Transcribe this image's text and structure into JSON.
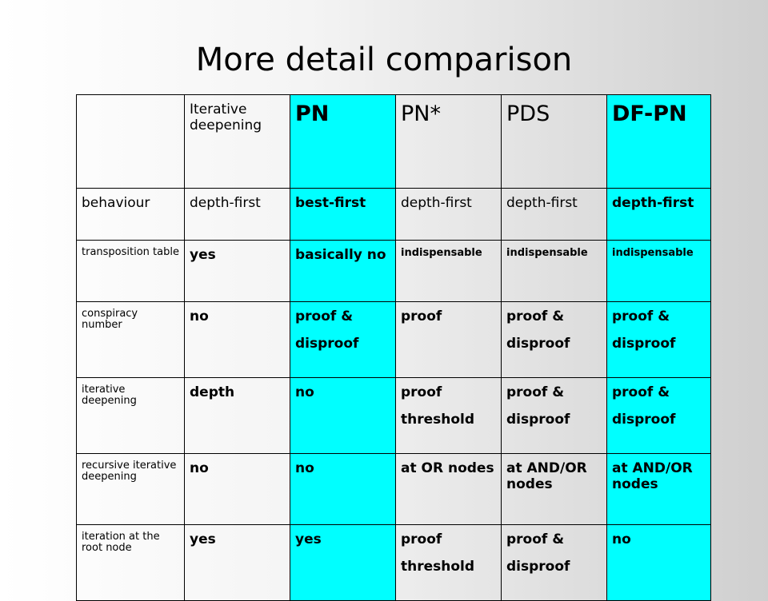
{
  "title": "More detail comparison",
  "columns": [
    "",
    "Iterative deepening",
    "PN",
    "PN*",
    "PDS",
    "DF-PN"
  ],
  "rows": [
    {
      "label": "behaviour",
      "cells": [
        [
          "depth-first"
        ],
        [
          "best-first"
        ],
        [
          "depth-first"
        ],
        [
          "depth-first"
        ],
        [
          "depth-first"
        ]
      ]
    },
    {
      "label": "transposition table",
      "cells": [
        [
          "yes"
        ],
        [
          "basically no"
        ],
        [
          "indispensable"
        ],
        [
          "indispensable"
        ],
        [
          "indispensable"
        ]
      ]
    },
    {
      "label": "conspiracy number",
      "cells": [
        [
          "no"
        ],
        [
          "proof &",
          "disproof"
        ],
        [
          "proof"
        ],
        [
          "proof &",
          "disproof"
        ],
        [
          "proof &",
          "disproof"
        ]
      ]
    },
    {
      "label": "iterative deepening",
      "cells": [
        [
          "depth"
        ],
        [
          "no"
        ],
        [
          "proof",
          "threshold"
        ],
        [
          "proof &",
          "disproof"
        ],
        [
          "proof &",
          "disproof"
        ]
      ]
    },
    {
      "label": "recursive iterative deepening",
      "cells": [
        [
          "no"
        ],
        [
          "no"
        ],
        [
          "at OR nodes"
        ],
        [
          "at AND/OR nodes"
        ],
        [
          "at AND/OR nodes"
        ]
      ]
    },
    {
      "label": "iteration at the root node",
      "cells": [
        [
          "yes"
        ],
        [
          "yes"
        ],
        [
          "proof",
          "threshold"
        ],
        [
          "proof &",
          "disproof"
        ],
        [
          "no"
        ]
      ]
    }
  ],
  "colors": {
    "highlight": "#00ffff"
  }
}
